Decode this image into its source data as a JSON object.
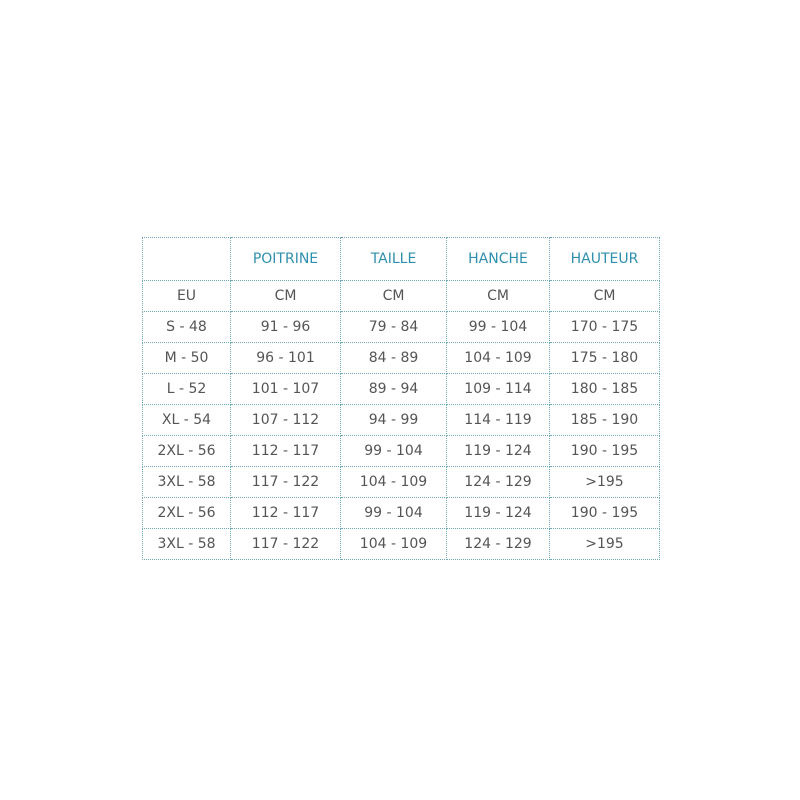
{
  "colors": {
    "header_text": "#2f8fae",
    "body_text": "#555555",
    "border": "#6fa9b8"
  },
  "headers": [
    "",
    "POITRINE",
    "TAILLE",
    "HANCHE",
    "HAUTEUR"
  ],
  "units": [
    "EU",
    "CM",
    "CM",
    "CM",
    "CM"
  ],
  "rows": [
    [
      "S - 48",
      "91 - 96",
      "79 - 84",
      "99 - 104",
      "170 - 175"
    ],
    [
      "M - 50",
      "96 - 101",
      "84 - 89",
      "104 - 109",
      "175 - 180"
    ],
    [
      "L - 52",
      "101 - 107",
      "89 - 94",
      "109 - 114",
      "180 - 185"
    ],
    [
      "XL - 54",
      "107 - 112",
      "94 - 99",
      "114 - 119",
      "185 - 190"
    ],
    [
      "2XL - 56",
      "112 - 117",
      "99 - 104",
      "119 - 124",
      "190 - 195"
    ],
    [
      "3XL - 58",
      "117 - 122",
      "104 - 109",
      "124 - 129",
      ">195"
    ],
    [
      "2XL - 56",
      "112 - 117",
      "99 - 104",
      "119 - 124",
      "190 - 195"
    ],
    [
      "3XL - 58",
      "117 - 122",
      "104 - 109",
      "124 - 129",
      ">195"
    ]
  ]
}
